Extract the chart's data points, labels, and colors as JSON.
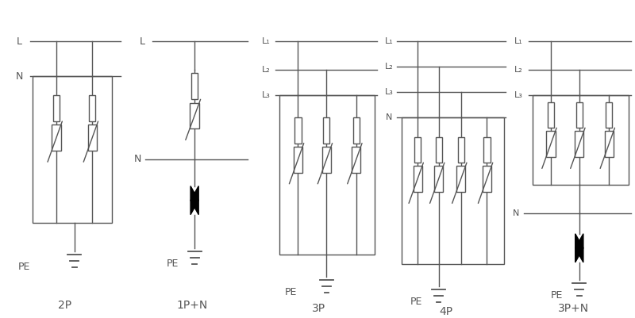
{
  "background": "#ffffff",
  "line_color": "#555555",
  "lw": 1.0,
  "panels": [
    "2P",
    "1P+N",
    "3P",
    "4P",
    "3P+N"
  ],
  "fig_w": 8.0,
  "fig_h": 4.01,
  "dpi": 100
}
